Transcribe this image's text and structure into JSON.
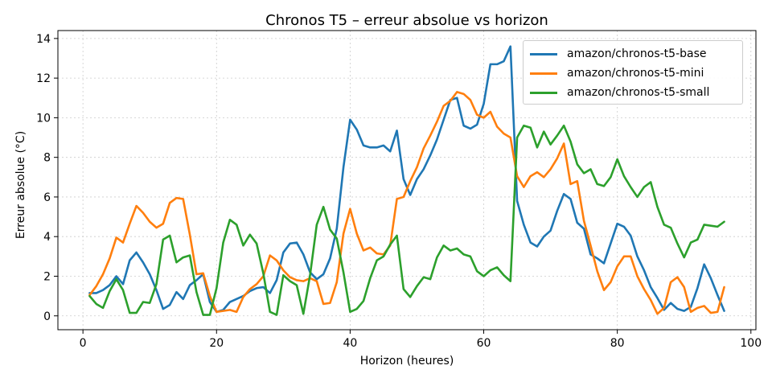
{
  "chart_data": {
    "type": "line",
    "title": "Chronos T5 – erreur absolue vs horizon",
    "xlabel": "Horizon (heures)",
    "ylabel": "Erreur absolue (°C)",
    "xlim": [
      -3.75,
      100.75
    ],
    "ylim": [
      -0.7,
      14.4
    ],
    "xticks": [
      0,
      20,
      40,
      60,
      80,
      100
    ],
    "yticks": [
      0,
      2,
      4,
      6,
      8,
      10,
      12,
      14
    ],
    "grid": true,
    "legend_position": "top-right",
    "x": [
      1,
      2,
      3,
      4,
      5,
      6,
      7,
      8,
      9,
      10,
      11,
      12,
      13,
      14,
      15,
      16,
      17,
      18,
      19,
      20,
      21,
      22,
      23,
      24,
      25,
      26,
      27,
      28,
      29,
      30,
      31,
      32,
      33,
      34,
      35,
      36,
      37,
      38,
      39,
      40,
      41,
      42,
      43,
      44,
      45,
      46,
      47,
      48,
      49,
      50,
      51,
      52,
      53,
      54,
      55,
      56,
      57,
      58,
      59,
      60,
      61,
      62,
      63,
      64,
      65,
      66,
      67,
      68,
      69,
      70,
      71,
      72,
      73,
      74,
      75,
      76,
      77,
      78,
      79,
      80,
      81,
      82,
      83,
      84,
      85,
      86,
      87,
      88,
      89,
      90,
      91,
      92,
      93,
      94,
      95,
      96
    ],
    "series": [
      {
        "name": "amazon/chronos-t5-base",
        "color": "#1f77b4",
        "values": [
          1.15,
          1.15,
          1.3,
          1.55,
          2.0,
          1.6,
          2.8,
          3.2,
          2.7,
          2.1,
          1.3,
          0.35,
          0.55,
          1.2,
          0.85,
          1.55,
          1.8,
          2.1,
          0.7,
          0.2,
          0.3,
          0.7,
          0.85,
          1.0,
          1.25,
          1.4,
          1.45,
          1.15,
          1.8,
          3.2,
          3.65,
          3.7,
          3.1,
          2.2,
          1.85,
          2.1,
          2.9,
          4.4,
          7.5,
          9.9,
          9.4,
          8.6,
          8.5,
          8.5,
          8.6,
          8.3,
          9.35,
          6.9,
          6.1,
          6.9,
          7.4,
          8.1,
          8.9,
          9.9,
          10.9,
          11.0,
          9.6,
          9.45,
          9.65,
          10.7,
          12.7,
          12.7,
          12.85,
          13.6,
          5.8,
          4.6,
          3.7,
          3.5,
          4.0,
          4.3,
          5.3,
          6.15,
          5.9,
          4.7,
          4.4,
          3.1,
          2.9,
          2.65,
          3.65,
          4.65,
          4.5,
          4.05,
          3.0,
          2.3,
          1.45,
          0.9,
          0.3,
          0.65,
          0.35,
          0.25,
          0.45,
          1.4,
          2.6,
          1.9,
          1.05,
          0.25
        ]
      },
      {
        "name": "amazon/chronos-t5-mini",
        "color": "#ff7f0e",
        "values": [
          1.05,
          1.5,
          2.1,
          2.9,
          3.95,
          3.7,
          4.65,
          5.55,
          5.2,
          4.75,
          4.45,
          4.65,
          5.7,
          5.95,
          5.9,
          4.1,
          2.1,
          2.15,
          1.0,
          0.2,
          0.25,
          0.3,
          0.2,
          0.95,
          1.35,
          1.6,
          2.0,
          3.05,
          2.8,
          2.3,
          1.95,
          1.8,
          1.75,
          1.9,
          1.75,
          0.6,
          0.65,
          1.7,
          4.15,
          5.4,
          4.15,
          3.3,
          3.45,
          3.15,
          3.1,
          3.55,
          5.9,
          6.0,
          6.8,
          7.5,
          8.45,
          9.1,
          9.8,
          10.6,
          10.85,
          11.3,
          11.2,
          10.9,
          10.15,
          10.0,
          10.3,
          9.55,
          9.2,
          9.0,
          7.05,
          6.5,
          7.05,
          7.25,
          7.0,
          7.4,
          7.95,
          8.7,
          6.65,
          6.8,
          4.8,
          3.55,
          2.25,
          1.3,
          1.7,
          2.5,
          3.0,
          3.0,
          2.0,
          1.35,
          0.8,
          0.1,
          0.4,
          1.7,
          1.95,
          1.45,
          0.2,
          0.4,
          0.5,
          0.15,
          0.2,
          1.45
        ]
      },
      {
        "name": "amazon/chronos-t5-small",
        "color": "#2ca02c",
        "values": [
          1.0,
          0.6,
          0.4,
          1.25,
          1.85,
          1.3,
          0.15,
          0.15,
          0.7,
          0.65,
          1.6,
          3.85,
          4.05,
          2.7,
          2.95,
          3.05,
          1.2,
          0.05,
          0.05,
          1.4,
          3.7,
          4.85,
          4.6,
          3.55,
          4.1,
          3.65,
          2.15,
          0.2,
          0.05,
          2.05,
          1.75,
          1.55,
          0.1,
          2.05,
          4.6,
          5.5,
          4.35,
          3.9,
          2.2,
          0.2,
          0.35,
          0.75,
          1.9,
          2.8,
          3.0,
          3.6,
          4.05,
          1.35,
          0.95,
          1.5,
          1.95,
          1.85,
          2.95,
          3.55,
          3.3,
          3.4,
          3.1,
          3.0,
          2.25,
          2.0,
          2.3,
          2.45,
          2.05,
          1.75,
          9.0,
          9.6,
          9.5,
          8.5,
          9.3,
          8.65,
          9.1,
          9.6,
          8.8,
          7.65,
          7.2,
          7.4,
          6.65,
          6.55,
          7.0,
          7.9,
          7.05,
          6.5,
          6.0,
          6.5,
          6.75,
          5.5,
          4.6,
          4.45,
          3.65,
          2.95,
          3.7,
          3.85,
          4.6,
          4.55,
          4.5,
          4.75
        ]
      }
    ]
  }
}
